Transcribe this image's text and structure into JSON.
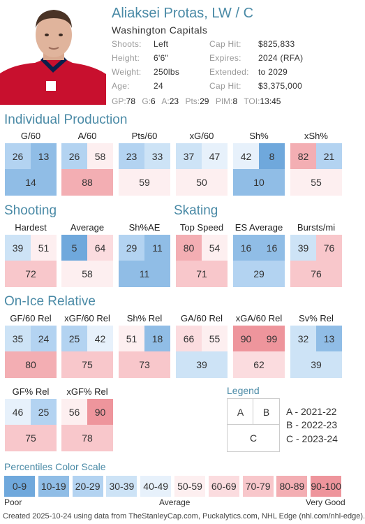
{
  "player": {
    "name": "Aliaksei Protas, LW / C",
    "team": "Washington Capitals",
    "info_left": [
      {
        "label": "Shoots:",
        "value": "Left"
      },
      {
        "label": "Height:",
        "value": "6'6\""
      },
      {
        "label": "Weight:",
        "value": "250lbs"
      },
      {
        "label": "Age:",
        "value": "24"
      }
    ],
    "info_right": [
      {
        "label": "Cap Hit:",
        "value": "$825,833"
      },
      {
        "label": "Expires:",
        "value": "2024 (RFA)"
      },
      {
        "label": "Extended:",
        "value": "to 2029"
      },
      {
        "label": "Cap Hit:",
        "value": "$3,375,000"
      }
    ],
    "statline": [
      {
        "k": "GP:",
        "v": "78"
      },
      {
        "k": "G:",
        "v": "6"
      },
      {
        "k": "A:",
        "v": "23"
      },
      {
        "k": "Pts:",
        "v": "29"
      },
      {
        "k": "PIM:",
        "v": "8"
      },
      {
        "k": "TOI:",
        "v": "13:45"
      }
    ]
  },
  "sections": {
    "individual": "Individual Production",
    "shooting": "Shooting",
    "skating": "Skating",
    "onice": "On-Ice Relative"
  },
  "tiles": [
    {
      "label": "G/60",
      "a": 26,
      "b": 13,
      "c": 14
    },
    {
      "label": "A/60",
      "a": 26,
      "b": 58,
      "c": 88
    },
    {
      "label": "Pts/60",
      "a": 23,
      "b": 33,
      "c": 59
    },
    {
      "label": "xG/60",
      "a": 37,
      "b": 47,
      "c": 50
    },
    {
      "label": "Sh%",
      "a": 42,
      "b": 8,
      "c": 10
    },
    {
      "label": "xSh%",
      "a": 82,
      "b": 21,
      "c": 55
    },
    {
      "label": "Hardest",
      "a": 39,
      "b": 51,
      "c": 72
    },
    {
      "label": "Average",
      "a": 5,
      "b": 64,
      "c": 58
    },
    {
      "label": "Sh%AE",
      "a": 29,
      "b": 11,
      "c": 11
    },
    {
      "label": "Top Speed",
      "a": 80,
      "b": 54,
      "c": 71
    },
    {
      "label": "ES Average",
      "a": 16,
      "b": 16,
      "c": 29
    },
    {
      "label": "Bursts/mi",
      "a": 39,
      "b": 76,
      "c": 76
    },
    {
      "label": "GF/60 Rel",
      "a": 35,
      "b": 24,
      "c": 80
    },
    {
      "label": "xGF/60 Rel",
      "a": 25,
      "b": 42,
      "c": 75
    },
    {
      "label": "Sh% Rel",
      "a": 51,
      "b": 18,
      "c": 73
    },
    {
      "label": "GA/60 Rel",
      "a": 66,
      "b": 55,
      "c": 39
    },
    {
      "label": "xGA/60 Rel",
      "a": 90,
      "b": 99,
      "c": 62
    },
    {
      "label": "Sv% Rel",
      "a": 32,
      "b": 13,
      "c": 39
    },
    {
      "label": "GF% Rel",
      "a": 46,
      "b": 25,
      "c": 75
    },
    {
      "label": "xGF% Rel",
      "a": 56,
      "b": 90,
      "c": 78
    }
  ],
  "legend": {
    "title": "Legend",
    "box_a": "A",
    "box_b": "B",
    "box_c": "C",
    "notes": [
      "A - 2021-22",
      "B - 2022-23",
      "C - 2023-24"
    ]
  },
  "scale": {
    "title": "Percentiles Color Scale",
    "bins": [
      {
        "label": "0-9",
        "color": "#6fa8dc"
      },
      {
        "label": "10-19",
        "color": "#90bde6"
      },
      {
        "label": "20-29",
        "color": "#b3d3f1"
      },
      {
        "label": "30-39",
        "color": "#cde3f6"
      },
      {
        "label": "40-49",
        "color": "#e7f1fb"
      },
      {
        "label": "50-59",
        "color": "#fdeff0"
      },
      {
        "label": "60-69",
        "color": "#fbdcdf"
      },
      {
        "label": "70-79",
        "color": "#f8c7cb"
      },
      {
        "label": "80-89",
        "color": "#f3aeb3"
      },
      {
        "label": "90-100",
        "color": "#ee959c"
      }
    ],
    "poor": "Poor",
    "average": "Average",
    "very_good": "Very Good"
  },
  "footer": "Created 2025-10-24 using data from TheStanleyCap.com, Puckalytics.com, NHL Edge (nhl.com/nhl-edge)."
}
